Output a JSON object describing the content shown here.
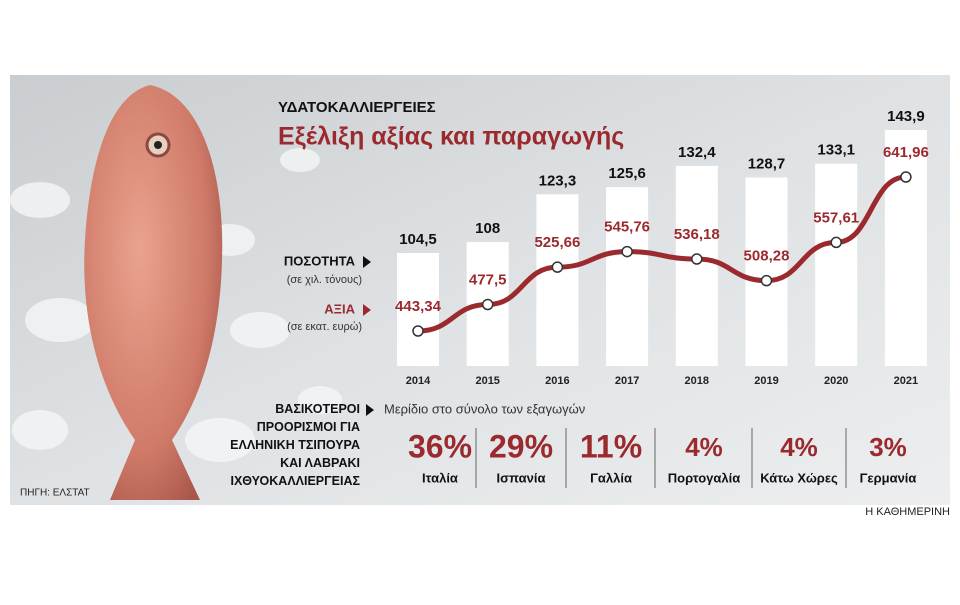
{
  "header": {
    "title": "ΥΔΑΤΟΚΑΛΛΙΕΡΓΕΙΕΣ",
    "subtitle": "Εξέλιξη αξίας και παραγωγής"
  },
  "chart_data": [
    {
      "type": "bar-line",
      "categories": [
        "2014",
        "2015",
        "2016",
        "2017",
        "2018",
        "2019",
        "2020",
        "2021"
      ],
      "series": [
        {
          "name": "ΠΟΣΟΤΗΤΑ",
          "unit": "(σε χιλ. τόνους)",
          "kind": "bar",
          "color": "#ffffff",
          "label_color": "#111111",
          "values": [
            104.5,
            108,
            123.3,
            125.6,
            132.4,
            128.7,
            133.1,
            143.9
          ],
          "value_labels": [
            "104,5",
            "108",
            "123,3",
            "125,6",
            "132,4",
            "128,7",
            "133,1",
            "143,9"
          ]
        },
        {
          "name": "ΑΞΙΑ",
          "unit": "(σε εκατ. ευρώ)",
          "kind": "line",
          "color": "#9b2a2f",
          "label_color": "#9b2a2f",
          "values": [
            443.34,
            477.5,
            525.66,
            545.76,
            536.18,
            508.28,
            557.61,
            641.96
          ],
          "value_labels": [
            "443,34",
            "477,5",
            "525,66",
            "545,76",
            "536,18",
            "508,28",
            "557,61",
            "641,96"
          ]
        }
      ]
    },
    {
      "type": "share",
      "title": "ΒΑΣΙΚΟΤΕΡΟΙ ΠΡΟΟΡΙΣΜΟΙ ΓΙΑ ΕΛΛΗΝΙΚΗ ΤΣΙΠΟΥΡΑ ΚΑΙ ΛΑΒΡΑΚΙ ΙΧΘΥΟΚΑΛΛΙΕΡΓΕΙΑΣ",
      "subtitle": "Μερίδιο στο σύνολο των εξαγωγών",
      "color": "#9b2a2f",
      "categories": [
        "Ιταλία",
        "Ισπανία",
        "Γαλλία",
        "Πορτογαλία",
        "Κάτω Χώρες",
        "Γερμανία"
      ],
      "values": [
        36,
        29,
        11,
        4,
        4,
        3
      ],
      "value_labels": [
        "36%",
        "29%",
        "11%",
        "4%",
        "4%",
        "3%"
      ]
    }
  ],
  "footer": {
    "source": "ΠΗΓΗ: ΕΛΣΤΑΤ",
    "credit": "Η ΚΑΘΗΜΕΡΙΝΗ"
  }
}
